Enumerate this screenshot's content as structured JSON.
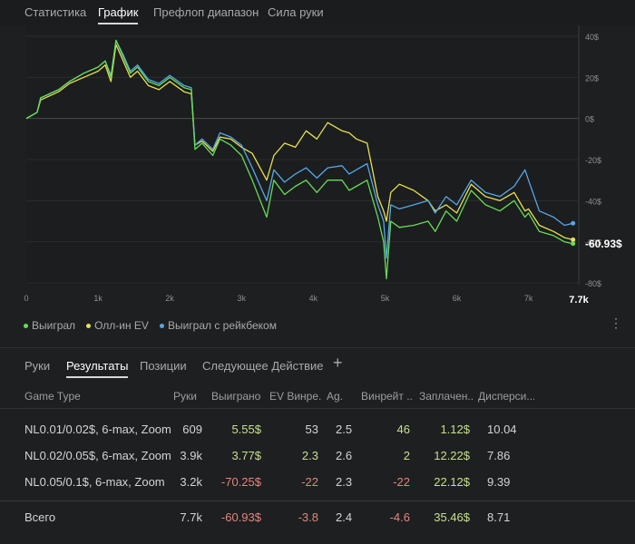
{
  "top_tabs": [
    "Статистика",
    "График",
    "Префлоп диапазон",
    "Сила руки"
  ],
  "colors": {
    "won": "#66dd55",
    "allin_ev": "#e8e050",
    "won_rakeback": "#55a8e8",
    "positive": "#c6e08c",
    "negative": "#e2877a"
  },
  "chart_data": {
    "type": "line",
    "x_ticks": [
      "0",
      "1k",
      "2k",
      "3k",
      "4k",
      "5k",
      "6k",
      "7k",
      "7.7k"
    ],
    "y_ticks": [
      "40$",
      "20$",
      "0$",
      "-20$",
      "-40$",
      "-60$",
      "-80$"
    ],
    "xlim": [
      0,
      7700
    ],
    "ylim": [
      -80,
      40
    ],
    "end_label": "-60.93$",
    "series": [
      {
        "name": "Выиграл",
        "points": [
          [
            0,
            0
          ],
          [
            150,
            3
          ],
          [
            200,
            10
          ],
          [
            450,
            14
          ],
          [
            600,
            18
          ],
          [
            800,
            22
          ],
          [
            1000,
            25
          ],
          [
            1100,
            28
          ],
          [
            1180,
            20
          ],
          [
            1250,
            38
          ],
          [
            1350,
            30
          ],
          [
            1450,
            22
          ],
          [
            1550,
            25
          ],
          [
            1700,
            18
          ],
          [
            1850,
            16
          ],
          [
            2000,
            20
          ],
          [
            2200,
            15
          ],
          [
            2300,
            14
          ],
          [
            2350,
            -15
          ],
          [
            2450,
            -12
          ],
          [
            2600,
            -18
          ],
          [
            2700,
            -10
          ],
          [
            2850,
            -13
          ],
          [
            3000,
            -18
          ],
          [
            3150,
            -30
          ],
          [
            3350,
            -48
          ],
          [
            3450,
            -30
          ],
          [
            3600,
            -37
          ],
          [
            3750,
            -33
          ],
          [
            3900,
            -30
          ],
          [
            4050,
            -36
          ],
          [
            4200,
            -30
          ],
          [
            4400,
            -30
          ],
          [
            4500,
            -35
          ],
          [
            4600,
            -33
          ],
          [
            4750,
            -30
          ],
          [
            4900,
            -48
          ],
          [
            4980,
            -60
          ],
          [
            5020,
            -78
          ],
          [
            5080,
            -50
          ],
          [
            5200,
            -53
          ],
          [
            5400,
            -52
          ],
          [
            5600,
            -50
          ],
          [
            5700,
            -55
          ],
          [
            5850,
            -45
          ],
          [
            6000,
            -50
          ],
          [
            6200,
            -35
          ],
          [
            6400,
            -42
          ],
          [
            6600,
            -45
          ],
          [
            6800,
            -40
          ],
          [
            6950,
            -48
          ],
          [
            7000,
            -46
          ],
          [
            7150,
            -55
          ],
          [
            7350,
            -57
          ],
          [
            7500,
            -60
          ],
          [
            7620,
            -60.93
          ]
        ]
      },
      {
        "name": "Олл-ин EV",
        "points": [
          [
            0,
            0
          ],
          [
            150,
            3
          ],
          [
            200,
            9
          ],
          [
            450,
            13
          ],
          [
            600,
            17
          ],
          [
            800,
            20
          ],
          [
            1000,
            23
          ],
          [
            1100,
            26
          ],
          [
            1180,
            18
          ],
          [
            1250,
            36
          ],
          [
            1350,
            28
          ],
          [
            1450,
            20
          ],
          [
            1550,
            23
          ],
          [
            1700,
            16
          ],
          [
            1850,
            14
          ],
          [
            2000,
            18
          ],
          [
            2200,
            13
          ],
          [
            2300,
            12
          ],
          [
            2350,
            -13
          ],
          [
            2450,
            -11
          ],
          [
            2600,
            -16
          ],
          [
            2700,
            -9
          ],
          [
            2850,
            -10
          ],
          [
            3000,
            -14
          ],
          [
            3150,
            -17
          ],
          [
            3350,
            -30
          ],
          [
            3450,
            -18
          ],
          [
            3600,
            -12
          ],
          [
            3750,
            -14
          ],
          [
            3900,
            -6
          ],
          [
            4050,
            -10
          ],
          [
            4200,
            -2
          ],
          [
            4400,
            -6
          ],
          [
            4500,
            -7
          ],
          [
            4600,
            -10
          ],
          [
            4750,
            -12
          ],
          [
            4900,
            -38
          ],
          [
            4980,
            -45
          ],
          [
            5020,
            -50
          ],
          [
            5080,
            -36
          ],
          [
            5200,
            -32
          ],
          [
            5400,
            -35
          ],
          [
            5600,
            -40
          ],
          [
            5700,
            -45
          ],
          [
            5850,
            -42
          ],
          [
            6000,
            -46
          ],
          [
            6200,
            -32
          ],
          [
            6400,
            -38
          ],
          [
            6600,
            -40
          ],
          [
            6800,
            -36
          ],
          [
            6950,
            -45
          ],
          [
            7000,
            -44
          ],
          [
            7150,
            -52
          ],
          [
            7350,
            -55
          ],
          [
            7500,
            -58
          ],
          [
            7620,
            -59
          ]
        ]
      },
      {
        "name": "Выиграл с рейкбеком",
        "points": [
          [
            0,
            0
          ],
          [
            150,
            3
          ],
          [
            200,
            10
          ],
          [
            450,
            14
          ],
          [
            600,
            18
          ],
          [
            800,
            22
          ],
          [
            1000,
            25
          ],
          [
            1100,
            28
          ],
          [
            1180,
            21
          ],
          [
            1250,
            38
          ],
          [
            1350,
            31
          ],
          [
            1450,
            23
          ],
          [
            1550,
            26
          ],
          [
            1700,
            19
          ],
          [
            1850,
            17
          ],
          [
            2000,
            21
          ],
          [
            2200,
            16
          ],
          [
            2300,
            15
          ],
          [
            2350,
            -13
          ],
          [
            2450,
            -10
          ],
          [
            2600,
            -15
          ],
          [
            2700,
            -7
          ],
          [
            2850,
            -9
          ],
          [
            3000,
            -13
          ],
          [
            3150,
            -24
          ],
          [
            3350,
            -40
          ],
          [
            3450,
            -25
          ],
          [
            3600,
            -31
          ],
          [
            3750,
            -27
          ],
          [
            3900,
            -24
          ],
          [
            4050,
            -29
          ],
          [
            4200,
            -24
          ],
          [
            4400,
            -23
          ],
          [
            4500,
            -27
          ],
          [
            4600,
            -25
          ],
          [
            4750,
            -22
          ],
          [
            4900,
            -42
          ],
          [
            4980,
            -50
          ],
          [
            5020,
            -68
          ],
          [
            5080,
            -42
          ],
          [
            5200,
            -44
          ],
          [
            5400,
            -42
          ],
          [
            5600,
            -40
          ],
          [
            5700,
            -46
          ],
          [
            5850,
            -38
          ],
          [
            6000,
            -42
          ],
          [
            6200,
            -30
          ],
          [
            6400,
            -36
          ],
          [
            6600,
            -38
          ],
          [
            6800,
            -33
          ],
          [
            6950,
            -25
          ],
          [
            7000,
            -30
          ],
          [
            7150,
            -45
          ],
          [
            7350,
            -48
          ],
          [
            7500,
            -52
          ],
          [
            7620,
            -51
          ]
        ]
      }
    ]
  },
  "legend": [
    {
      "label": "Выиграл",
      "color": "#66dd55"
    },
    {
      "label": "Олл-ин EV",
      "color": "#e8e050"
    },
    {
      "label": "Выиграл с рейкбеком",
      "color": "#55a8e8"
    }
  ],
  "menu_icon": "⋮",
  "bottom_tabs": [
    "Руки",
    "Результаты",
    "Позиции",
    "Следующее Действие"
  ],
  "add_tab_icon": "+",
  "table": {
    "headers": [
      "Game Type",
      "Руки",
      "Выиграно",
      "EV Винре...",
      "Ag.",
      "Винрейт ...",
      "Заплачен...",
      "Дисперси..."
    ],
    "rows": [
      [
        "NL0.01/0.02$, 6-max, Zoom",
        "609",
        "5.55$",
        "53",
        "2.5",
        "46",
        "1.12$",
        "10.04"
      ],
      [
        "NL0.02/0.05$, 6-max, Zoom",
        "3.9k",
        "3.77$",
        "2.3",
        "2.6",
        "2",
        "12.22$",
        "7.86"
      ],
      [
        "NL0.05/0.1$, 6-max, Zoom",
        "3.2k",
        "-70.25$",
        "-22",
        "2.3",
        "-22",
        "22.12$",
        "9.39"
      ]
    ],
    "total": [
      "Всего",
      "7.7k",
      "-60.93$",
      "-3.8",
      "2.4",
      "-4.6",
      "35.46$",
      "8.71"
    ]
  }
}
